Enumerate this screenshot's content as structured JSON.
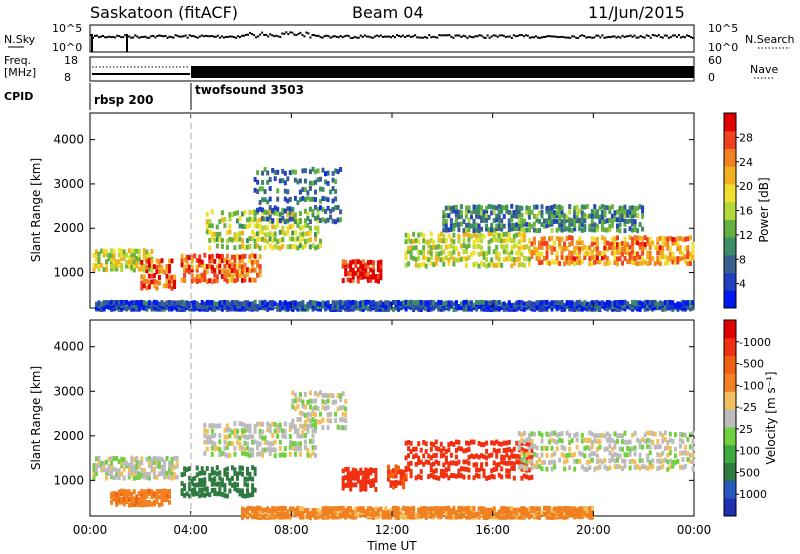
{
  "header": {
    "station": "Saskatoon (fitACF)",
    "beam": "Beam 04",
    "date": "11/Jun/2015"
  },
  "status_panels": {
    "nsky": {
      "label": "N.Sky",
      "ticks": [
        "10^5",
        "10^0"
      ]
    },
    "nsearch": {
      "label": "N.Search",
      "ticks": [
        "10^5",
        "10^0"
      ]
    },
    "freq": {
      "label_line1": "Freq.",
      "label_line2": "[MHz]",
      "ticks": [
        "18",
        "8"
      ]
    },
    "nave": {
      "label": "Nave",
      "ticks": [
        "60",
        "0"
      ]
    },
    "cpid": {
      "label": "CPID",
      "programs": [
        "rbsp 200",
        "twofsound 3503"
      ],
      "switch_time": "04:00"
    }
  },
  "x_axis": {
    "label": "Time UT",
    "ticks": [
      "00:00",
      "04:00",
      "08:00",
      "12:00",
      "16:00",
      "20:00",
      "00:00"
    ]
  },
  "chart_data": [
    {
      "type": "heatmap",
      "title": "",
      "ylabel": "Slant Range [km]",
      "yticks": [
        "1000",
        "2000",
        "3000",
        "4000"
      ],
      "ylim": [
        200,
        4600
      ],
      "xlim_hours": [
        0,
        24
      ],
      "colorbar": {
        "label": "Power [dB]",
        "ticks": [
          "4",
          "8",
          "12",
          "16",
          "20",
          "24",
          "28"
        ],
        "colors": [
          "#0018f0",
          "#2040c0",
          "#3a6090",
          "#3c8c64",
          "#64b040",
          "#b4d83a",
          "#f0e030",
          "#f0b020",
          "#f08020",
          "#f04020",
          "#e00000"
        ]
      },
      "regions": [
        {
          "t": [
            0.1,
            2.5
          ],
          "r": [
            1100,
            1600
          ],
          "level": 0.55
        },
        {
          "t": [
            2.0,
            3.4
          ],
          "r": [
            700,
            1400
          ],
          "level": 0.85
        },
        {
          "t": [
            3.6,
            6.8
          ],
          "r": [
            850,
            1500
          ],
          "level": 0.8
        },
        {
          "t": [
            4.6,
            9.2
          ],
          "r": [
            1600,
            2500
          ],
          "level": 0.5
        },
        {
          "t": [
            6.5,
            10.0
          ],
          "r": [
            2200,
            3500
          ],
          "level": 0.25
        },
        {
          "t": [
            10.0,
            11.6
          ],
          "r": [
            850,
            1350
          ],
          "level": 0.95
        },
        {
          "t": [
            12.5,
            17.5
          ],
          "r": [
            1200,
            2000
          ],
          "level": 0.55
        },
        {
          "t": [
            14.0,
            22.0
          ],
          "r": [
            2000,
            2600
          ],
          "level": 0.3
        },
        {
          "t": [
            17.5,
            24.0
          ],
          "r": [
            1250,
            1900
          ],
          "level": 0.75
        },
        {
          "t": [
            0.2,
            24.0
          ],
          "r": [
            220,
            400
          ],
          "level": 0.15
        }
      ]
    },
    {
      "type": "heatmap",
      "title": "",
      "ylabel": "Slant Range [km]",
      "yticks": [
        "1000",
        "2000",
        "3000",
        "4000"
      ],
      "ylim": [
        200,
        4600
      ],
      "xlim_hours": [
        0,
        24
      ],
      "colorbar": {
        "label": "Velocity [m s⁻¹]",
        "ticks": [
          "1000",
          "500",
          "100",
          "25",
          "-25",
          "-100",
          "-500",
          "-1000"
        ],
        "colors": [
          "#2030b0",
          "#2858c0",
          "#2e7a40",
          "#3caa3c",
          "#70d040",
          "#bcbcbc",
          "#f0c060",
          "#f08020",
          "#f06010",
          "#f03010",
          "#e00000"
        ]
      },
      "regions": [
        {
          "t": [
            0.1,
            3.5
          ],
          "r": [
            1100,
            1600
          ],
          "value": 0
        },
        {
          "t": [
            3.6,
            6.6
          ],
          "r": [
            700,
            1400
          ],
          "value": 150
        },
        {
          "t": [
            4.5,
            9.0
          ],
          "r": [
            1600,
            2400
          ],
          "value": 0
        },
        {
          "t": [
            8.0,
            10.2
          ],
          "r": [
            2200,
            3100
          ],
          "value": 0
        },
        {
          "t": [
            10.0,
            11.4
          ],
          "r": [
            850,
            1350
          ],
          "value": -400
        },
        {
          "t": [
            11.8,
            12.6
          ],
          "r": [
            900,
            1400
          ],
          "value": -300
        },
        {
          "t": [
            12.5,
            17.6
          ],
          "r": [
            1100,
            2000
          ],
          "value": -450
        },
        {
          "t": [
            17.0,
            24.0
          ],
          "r": [
            1300,
            2200
          ],
          "value": 0
        },
        {
          "t": [
            0.8,
            3.2
          ],
          "r": [
            500,
            850
          ],
          "value": -80
        },
        {
          "t": [
            6.0,
            20.0
          ],
          "r": [
            220,
            450
          ],
          "value": -60
        }
      ]
    }
  ]
}
